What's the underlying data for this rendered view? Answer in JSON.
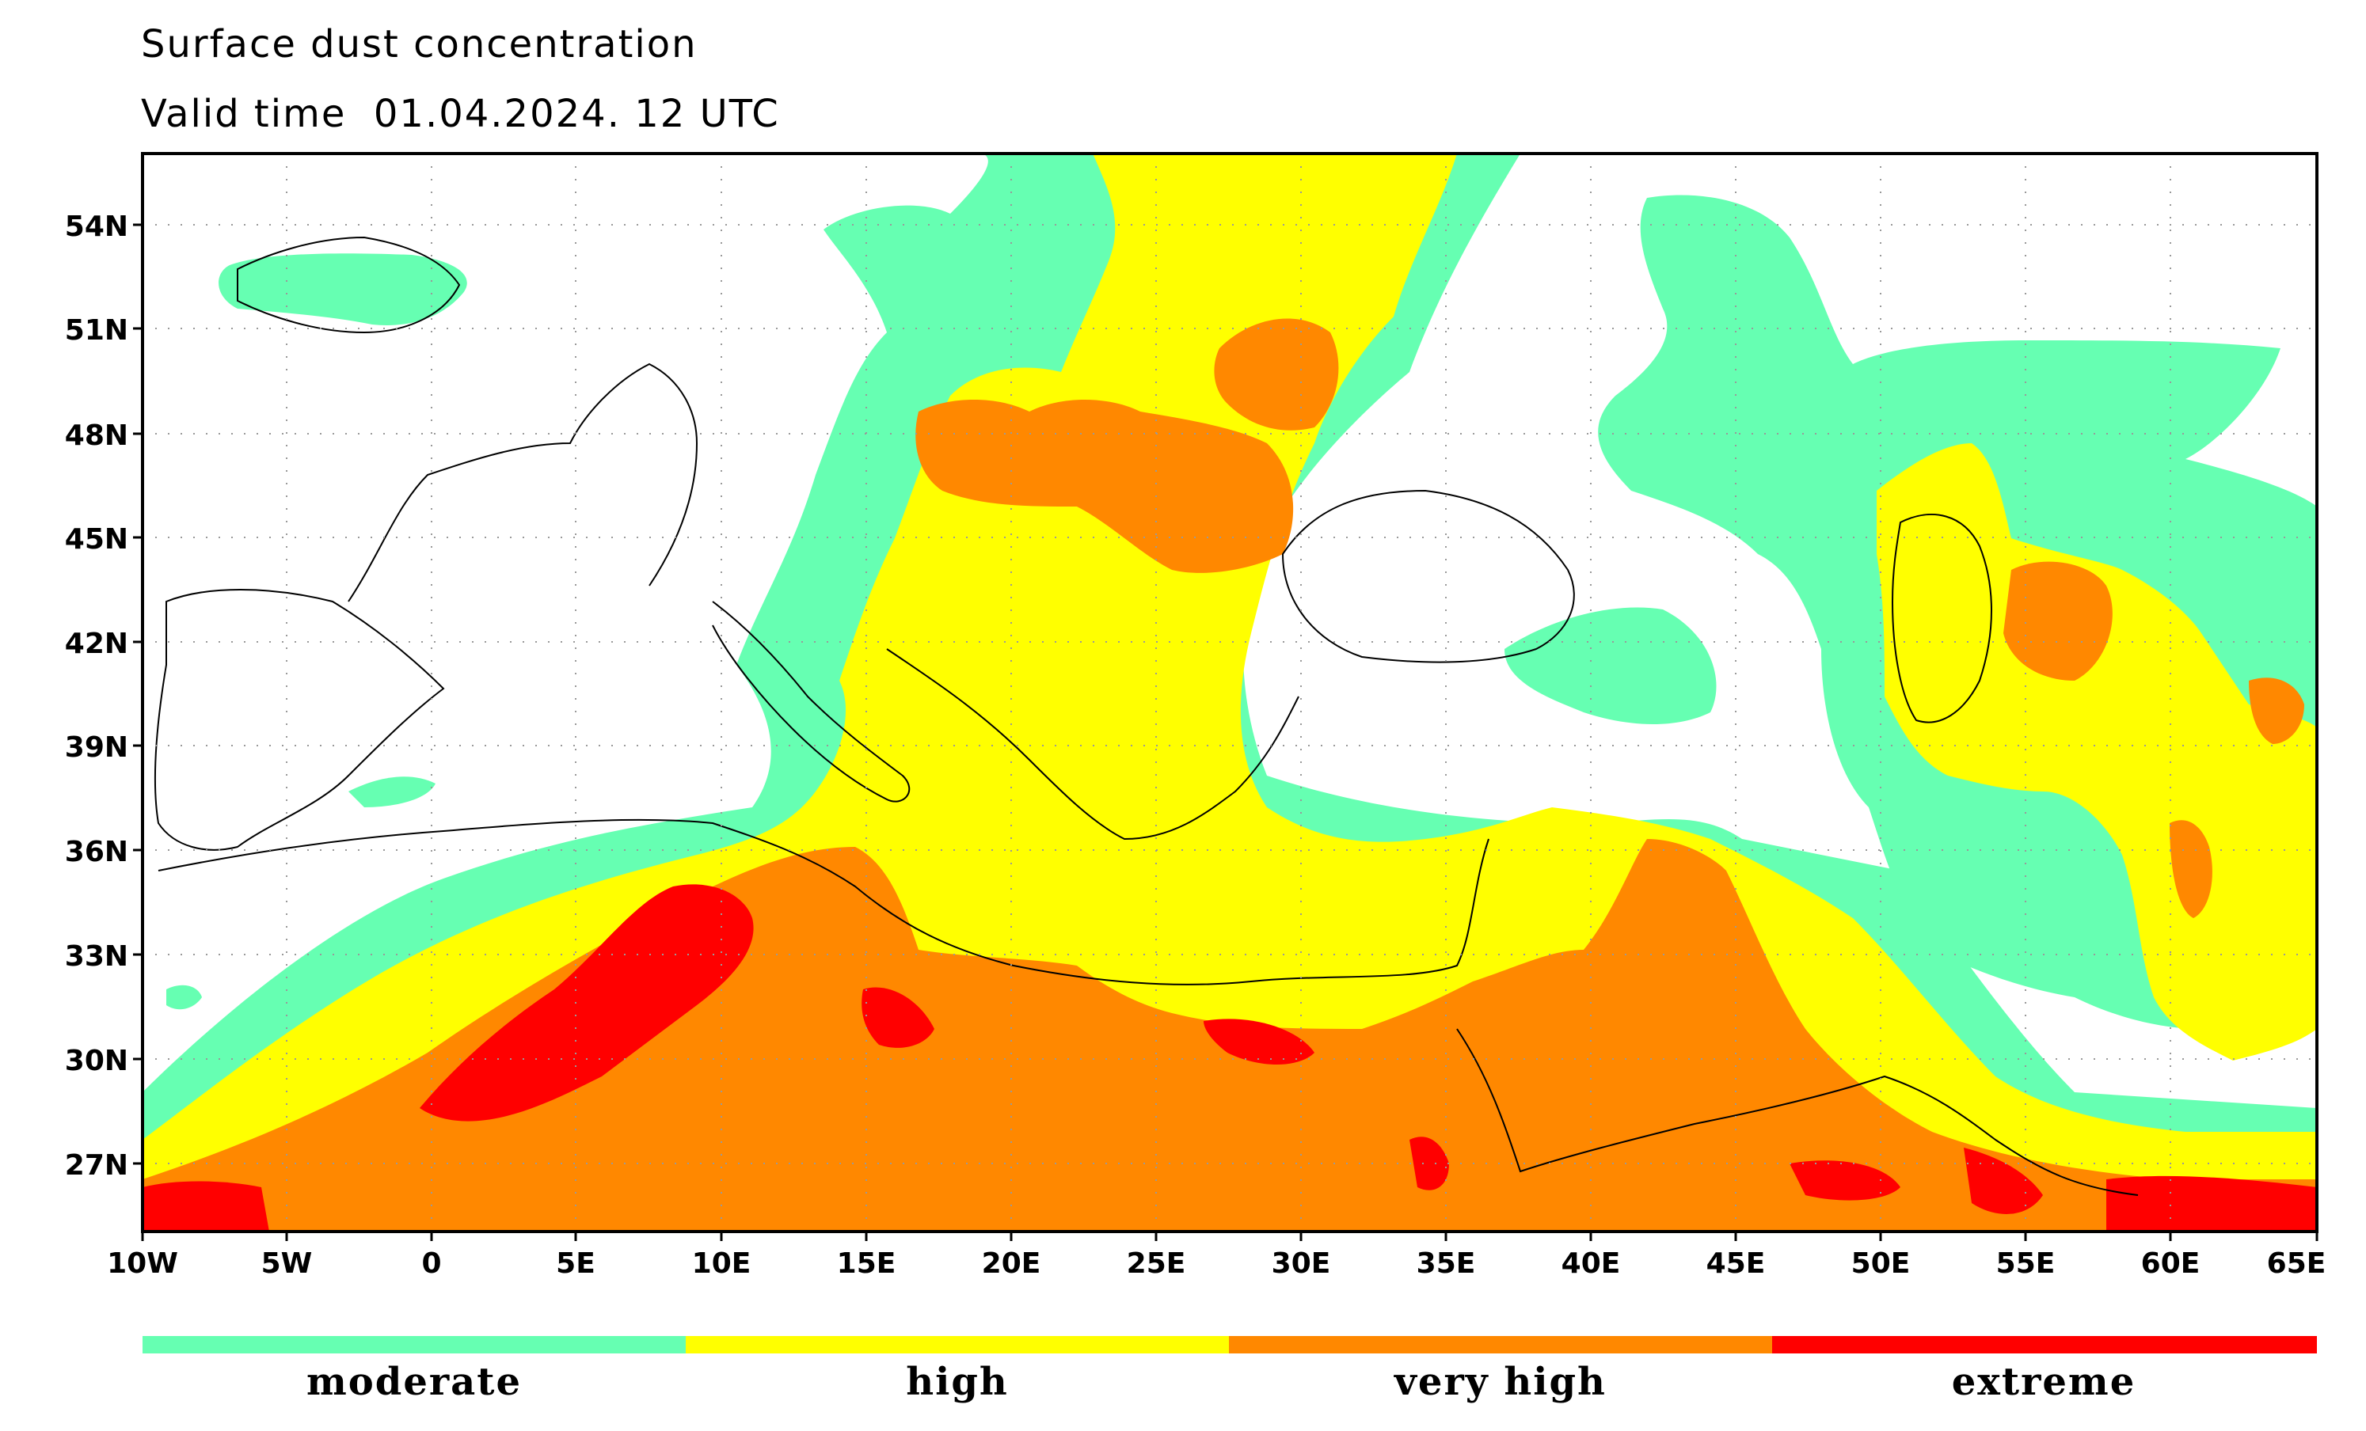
{
  "header": {
    "title": "Surface dust concentration",
    "valid_time": "Valid time  01.04.2024. 12 UTC"
  },
  "map": {
    "projection": "lat-lon",
    "lon_range": [
      -10,
      65
    ],
    "lat_range": [
      25,
      55
    ],
    "y_ticks": [
      "54N",
      "51N",
      "48N",
      "45N",
      "42N",
      "39N",
      "36N",
      "33N",
      "30N",
      "27N"
    ],
    "x_ticks": [
      "10W",
      "5W",
      "0",
      "5E",
      "10E",
      "15E",
      "20E",
      "25E",
      "30E",
      "35E",
      "40E",
      "45E",
      "50E",
      "55E",
      "60E",
      "65E"
    ],
    "grid": "dotted"
  },
  "legend": {
    "categories": [
      {
        "label": "moderate",
        "color": "#66ffb2"
      },
      {
        "label": "high",
        "color": "#ffff00"
      },
      {
        "label": "very high",
        "color": "#ff8800"
      },
      {
        "label": "extreme",
        "color": "#ff0000"
      }
    ]
  }
}
